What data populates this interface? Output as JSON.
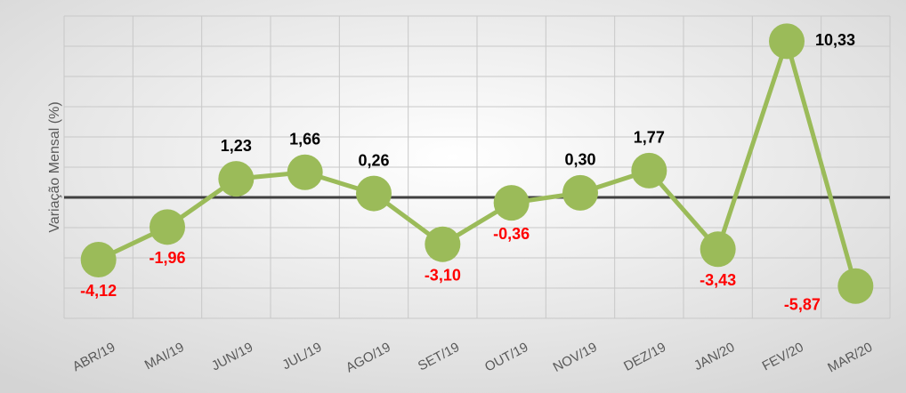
{
  "chart_data": {
    "type": "line",
    "y_label": "Variação Mensal (%)",
    "categories": [
      "ABR/19",
      "MAI/19",
      "JUN/19",
      "JUL/19",
      "AGO/19",
      "SET/19",
      "OUT/19",
      "NOV/19",
      "DEZ/19",
      "JAN/20",
      "FEV/20",
      "MAR/20"
    ],
    "series": [
      {
        "name": "Variação Mensal",
        "color": "#9bbb59",
        "values": [
          -4.12,
          -1.96,
          1.23,
          1.66,
          0.26,
          -3.1,
          -0.36,
          0.3,
          1.77,
          -3.43,
          10.33,
          -5.87
        ],
        "value_labels": [
          "-4,12",
          "-1,96",
          "1,23",
          "1,66",
          "0,26",
          "-3,10",
          "-0,36",
          "0,30",
          "1,77",
          "-3,43",
          "10,33",
          "-5,87"
        ]
      }
    ],
    "ylim": [
      -8,
      12
    ],
    "yticks": [
      -8,
      -6,
      -4,
      -2,
      0,
      2,
      4,
      6,
      8,
      10,
      12
    ],
    "show_ytick_labels": false,
    "grid": true,
    "positive_label_color": "#000000",
    "negative_label_color": "#ff0000"
  }
}
